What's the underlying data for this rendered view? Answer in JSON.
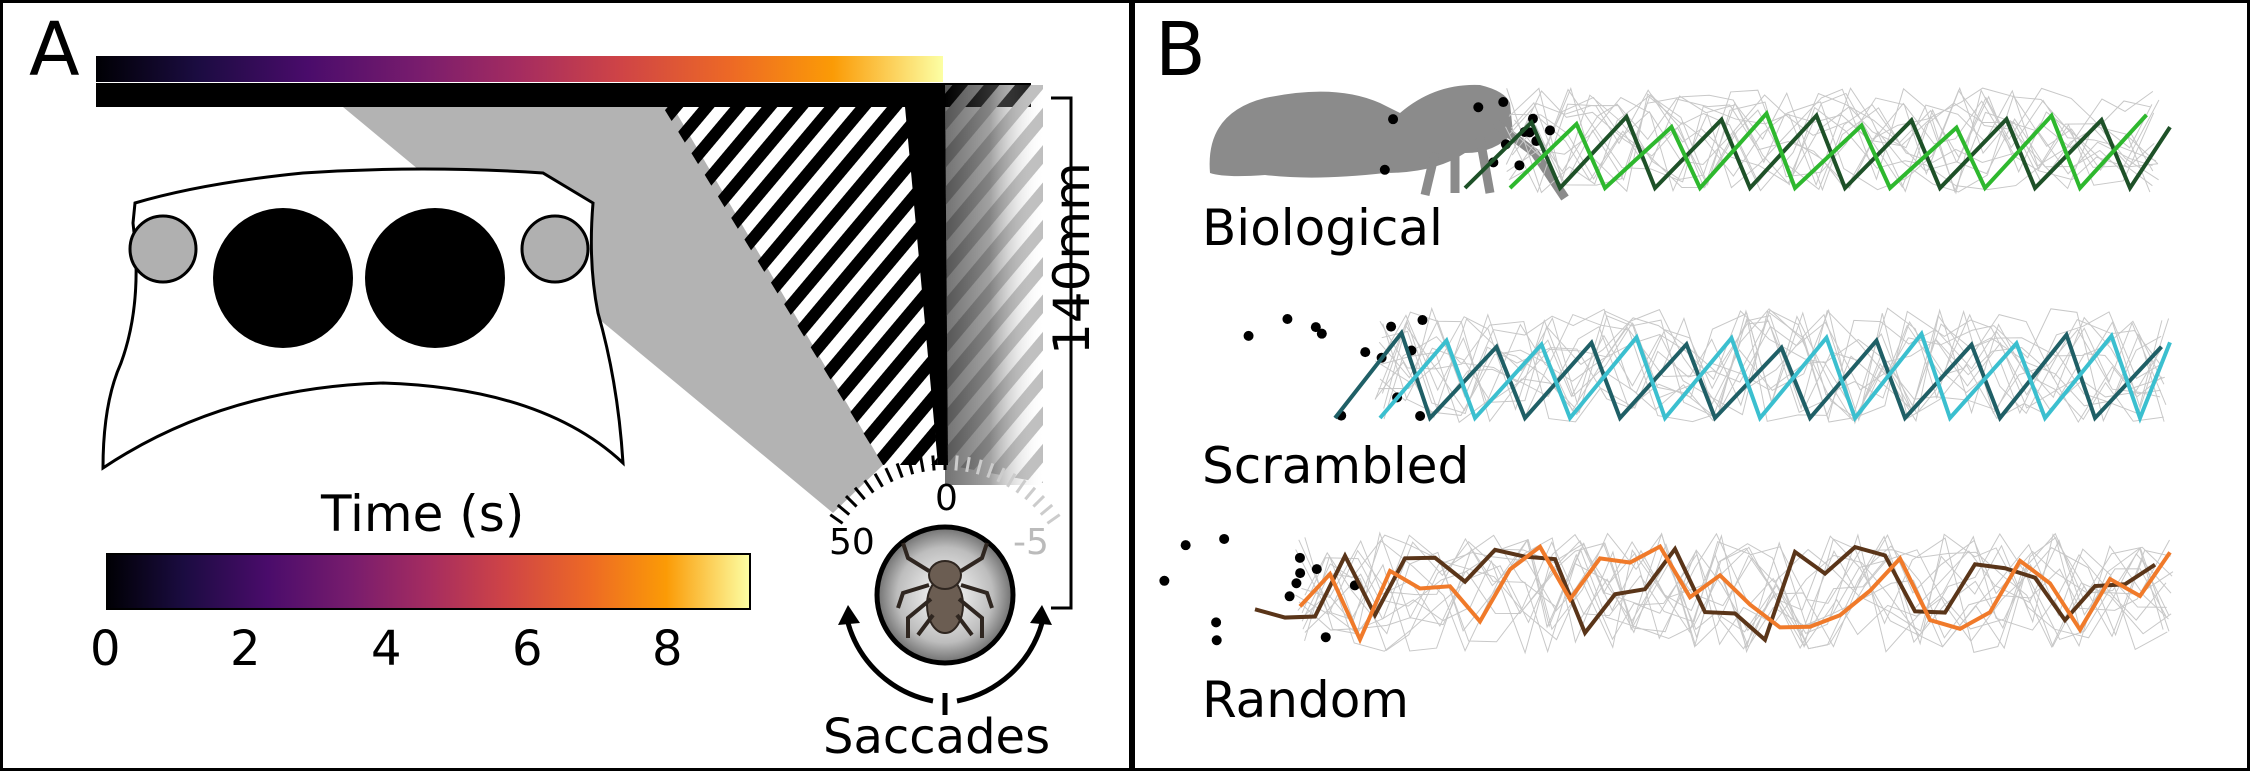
{
  "panel_a": {
    "letter": "A",
    "colorbar": {
      "title": "Time (s)",
      "ticks": [
        "0",
        "2",
        "4",
        "6",
        "8"
      ]
    },
    "dial": {
      "tick_left": "50",
      "tick_center": "0",
      "tick_right": "-5"
    },
    "scale_label": "140mm",
    "saccades_label": "Saccades"
  },
  "panel_b": {
    "letter": "B",
    "conditions": [
      {
        "label": "Biological",
        "dark": "#1e5128",
        "light": "#2eb82e"
      },
      {
        "label": "Scrambled",
        "dark": "#1f5f66",
        "light": "#3bbfcf"
      },
      {
        "label": "Random",
        "dark": "#5a3519",
        "light": "#f07a2a"
      }
    ]
  },
  "colors": {
    "colormap": "inferno",
    "stripes": "#000000",
    "shadow": "#b3b3b3",
    "spider_body": "#8b8b8b"
  }
}
